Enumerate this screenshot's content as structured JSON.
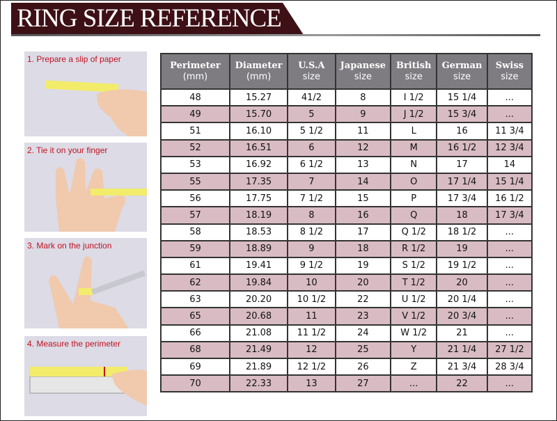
{
  "title": "RING SIZE REFERENCE",
  "steps": [
    {
      "label": "1. Prepare a slip of paper"
    },
    {
      "label": "2. Tie it on your finger"
    },
    {
      "label": "3. Mark on the junction"
    },
    {
      "label": "4. Measure the perimeter"
    }
  ],
  "colors": {
    "banner": "#3d1015",
    "header": "#7e7c80",
    "alt_row": "#d9bcc3",
    "step_label": "#c1121f"
  },
  "table": {
    "headers": [
      {
        "title": "Perimeter",
        "sub": "(mm)"
      },
      {
        "title": "Diameter",
        "sub": "(mm)"
      },
      {
        "title": "U.S.A",
        "sub": "size"
      },
      {
        "title": "Japanese",
        "sub": "size"
      },
      {
        "title": "British",
        "sub": "size"
      },
      {
        "title": "German",
        "sub": "size"
      },
      {
        "title": "Swiss",
        "sub": "size"
      }
    ],
    "rows": [
      [
        "48",
        "15.27",
        "41/2",
        "8",
        "I 1/2",
        "15 1/4",
        "..."
      ],
      [
        "49",
        "15.70",
        "5",
        "9",
        "J 1/2",
        "15 3/4",
        "..."
      ],
      [
        "51",
        "16.10",
        "5 1/2",
        "11",
        "L",
        "16",
        "11 3/4"
      ],
      [
        "52",
        "16.51",
        "6",
        "12",
        "M",
        "16 1/2",
        "12 3/4"
      ],
      [
        "53",
        "16.92",
        "6 1/2",
        "13",
        "N",
        "17",
        "14"
      ],
      [
        "55",
        "17.35",
        "7",
        "14",
        "O",
        "17 1/4",
        "15 1/4"
      ],
      [
        "56",
        "17.75",
        "7 1/2",
        "15",
        "P",
        "17 3/4",
        "16 1/2"
      ],
      [
        "57",
        "18.19",
        "8",
        "16",
        "Q",
        "18",
        "17 3/4"
      ],
      [
        "58",
        "18.53",
        "8 1/2",
        "17",
        "Q  1/2",
        "18 1/2",
        "..."
      ],
      [
        "59",
        "18.89",
        "9",
        "18",
        "R 1/2",
        "19",
        "..."
      ],
      [
        "61",
        "19.41",
        "9 1/2",
        "19",
        "S 1/2",
        "19 1/2",
        "..."
      ],
      [
        "62",
        "19.84",
        "10",
        "20",
        "T 1/2",
        "20",
        "..."
      ],
      [
        "63",
        "20.20",
        "10 1/2",
        "22",
        "U 1/2",
        "20 1/4",
        "..."
      ],
      [
        "65",
        "20.68",
        "11",
        "23",
        "V 1/2",
        "20 3/4",
        "..."
      ],
      [
        "66",
        "21.08",
        "11 1/2",
        "24",
        "W 1/2",
        "21",
        "..."
      ],
      [
        "68",
        "21.49",
        "12",
        "25",
        "Y",
        "21 1/4",
        "27 1/2"
      ],
      [
        "69",
        "21.89",
        "12 1/2",
        "26",
        "Z",
        "21 3/4",
        "28 3/4"
      ],
      [
        "70",
        "22.33",
        "13",
        "27",
        "...",
        "22",
        "..."
      ]
    ]
  }
}
